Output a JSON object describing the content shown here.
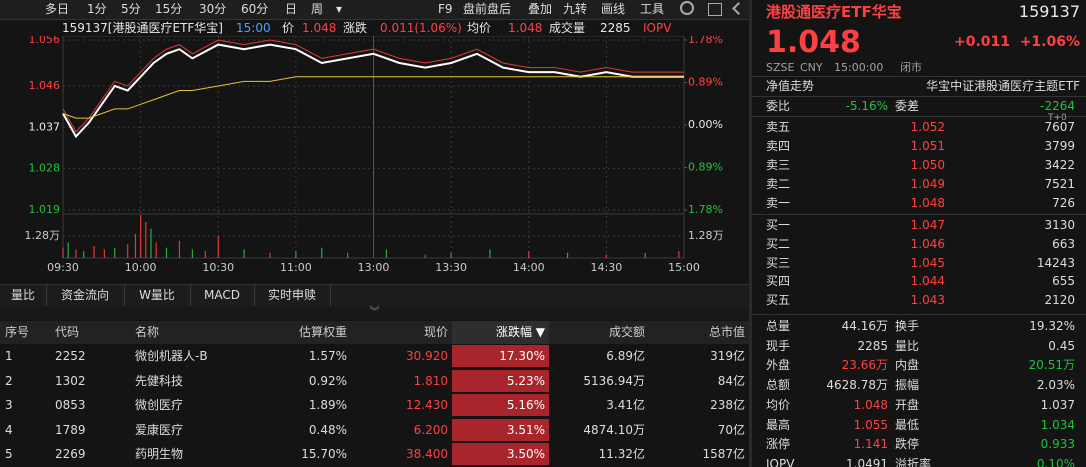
{
  "toolbar": {
    "left": [
      "多日",
      "1分",
      "5分",
      "15分",
      "30分",
      "60分",
      "日",
      "周",
      "▾"
    ],
    "right": [
      "F9",
      "盘前盘后",
      "叠加",
      "九转",
      "画线",
      "工具"
    ]
  },
  "chart_header": {
    "code_name": "159137[港股通医疗ETF华宝]",
    "time": "15:00",
    "price_label": "价",
    "price": "1.048",
    "change_label": "涨跌",
    "change": "0.011(1.06%)",
    "avg_label": "均价",
    "avg": "1.048",
    "volume_label": "成交量",
    "volume": "2285",
    "iopv_label": "IOPV"
  },
  "chart_data": [
    {
      "type": "line",
      "x": [
        0,
        5,
        10,
        15,
        20,
        25,
        30,
        35,
        40,
        45,
        50,
        60,
        70,
        80,
        90,
        100,
        110,
        120,
        130,
        140,
        150,
        160,
        170,
        180,
        190,
        200,
        210,
        220,
        230,
        240
      ],
      "series": [
        {
          "color": "#e03a3a",
          "values": [
            1.041,
            1.036,
            1.039,
            1.043,
            1.047,
            1.046,
            1.049,
            1.052,
            1.054,
            1.055,
            1.053,
            1.056,
            1.055,
            1.056,
            1.055,
            1.052,
            1.053,
            1.054,
            1.052,
            1.051,
            1.052,
            1.054,
            1.051,
            1.05,
            1.05,
            1.049,
            1.05,
            1.049,
            1.049,
            1.049
          ]
        },
        {
          "color": "#ffffff",
          "values": [
            1.04,
            1.035,
            1.038,
            1.042,
            1.046,
            1.045,
            1.048,
            1.051,
            1.053,
            1.054,
            1.052,
            1.055,
            1.054,
            1.055,
            1.054,
            1.051,
            1.052,
            1.053,
            1.051,
            1.05,
            1.051,
            1.053,
            1.05,
            1.049,
            1.049,
            1.048,
            1.049,
            1.048,
            1.048,
            1.048
          ]
        },
        {
          "color": "#e8c040",
          "values": [
            1.04,
            1.039,
            1.039,
            1.04,
            1.041,
            1.041,
            1.042,
            1.043,
            1.044,
            1.045,
            1.045,
            1.046,
            1.047,
            1.047,
            1.048,
            1.048,
            1.048,
            1.048,
            1.048,
            1.048,
            1.048,
            1.048,
            1.048,
            1.048,
            1.048,
            1.048,
            1.048,
            1.048,
            1.048,
            1.048
          ]
        }
      ],
      "xlim": [
        0,
        240
      ],
      "xticks": [
        {
          "value": 0,
          "label": "09:30"
        },
        {
          "value": 30,
          "label": "10:00"
        },
        {
          "value": 60,
          "label": "10:30"
        },
        {
          "value": 90,
          "label": "11:00"
        },
        {
          "value": 120,
          "label": "13:00"
        },
        {
          "value": 150,
          "label": "13:30"
        },
        {
          "value": 180,
          "label": "14:00"
        },
        {
          "value": 210,
          "label": "14:30"
        },
        {
          "value": 240,
          "label": "15:00"
        }
      ],
      "ylim": [
        1.019,
        1.056
      ],
      "yticks": [
        1.056,
        1.046,
        1.037,
        1.028,
        1.019
      ],
      "y2lim": [
        -1.78,
        1.78
      ],
      "y2ticks": [
        {
          "value": 1.78,
          "label": "1.78%"
        },
        {
          "value": 0.89,
          "label": "0.89%"
        },
        {
          "value": 0,
          "label": "0.00%"
        },
        {
          "value": -0.89,
          "label": "0.89%"
        },
        {
          "value": -1.78,
          "label": "1.78%"
        }
      ],
      "grid": true
    },
    {
      "type": "bar",
      "x": [
        0,
        2,
        5,
        8,
        12,
        16,
        20,
        25,
        28,
        30,
        32,
        34,
        36,
        40,
        45,
        50,
        55,
        60,
        70,
        80,
        90,
        100,
        110,
        125,
        140,
        150,
        165,
        180,
        195,
        210,
        225,
        238
      ],
      "values": [
        6000,
        9000,
        5000,
        4000,
        7000,
        5000,
        6000,
        8000,
        14000,
        25000,
        21000,
        17000,
        9000,
        6000,
        10000,
        5000,
        4000,
        13000,
        5000,
        3000,
        4000,
        6000,
        3000,
        5000,
        2000,
        3000,
        5000,
        4000,
        3000,
        2000,
        3000,
        4000
      ],
      "colors": [
        "#e03a3a",
        "#20b040",
        "#e03a3a",
        "#20b040",
        "#e03a3a",
        "#e03a3a",
        "#20b040",
        "#e03a3a",
        "#e03a3a",
        "#e03a3a",
        "#e03a3a",
        "#20b040",
        "#e03a3a",
        "#20b040",
        "#e03a3a",
        "#20b040",
        "#e03a3a",
        "#e03a3a",
        "#20b040",
        "#e03a3a",
        "#20b040",
        "#20b040",
        "#e03a3a",
        "#20b040",
        "#e03a3a",
        "#20b040",
        "#20b040",
        "#e03a3a",
        "#20b040",
        "#e03a3a",
        "#20b040",
        "#e03a3a"
      ],
      "xlim": [
        0,
        240
      ],
      "ylim": [
        0,
        25600
      ],
      "yticks": [
        {
          "value": 12800,
          "label": "1.28万"
        }
      ]
    }
  ],
  "tabs": [
    "量比",
    "资金流向",
    "W量比",
    "MACD",
    "实时申赎"
  ],
  "table": {
    "header": [
      "序号",
      "代码",
      "名称",
      "估算权重",
      "现价",
      "涨跌幅 ▼",
      "成交额",
      "总市值"
    ],
    "rows": [
      [
        "1",
        "2252",
        "微创机器人-B",
        "1.57%",
        "30.920",
        "17.30%",
        "6.89亿",
        "319亿"
      ],
      [
        "2",
        "1302",
        "先健科技",
        "0.92%",
        "1.810",
        "5.23%",
        "5136.94万",
        "84亿"
      ],
      [
        "3",
        "0853",
        "微创医疗",
        "1.89%",
        "12.430",
        "5.16%",
        "3.41亿",
        "238亿"
      ],
      [
        "4",
        "1789",
        "爱康医疗",
        "0.48%",
        "6.200",
        "3.51%",
        "4874.10万",
        "70亿"
      ],
      [
        "5",
        "2269",
        "药明生物",
        "15.70%",
        "38.400",
        "3.50%",
        "11.32亿",
        "1587亿"
      ]
    ]
  },
  "quote": {
    "name": "港股通医疗ETF华宝",
    "code": "159137",
    "price": "1.048",
    "change": "+0.011",
    "change_pct": "+1.06%",
    "exchange": "SZSE",
    "currency": "CNY",
    "time": "15:00:00",
    "status": "闭市",
    "nav_label": "净值走势",
    "index_name": "华宝中证港股通医疗主题ETF",
    "wb_label": "委比",
    "wb": "-5.16%",
    "wc_label": "委差",
    "wc": "-2264",
    "t0": "T+0"
  },
  "order_book": [
    {
      "label": "卖五",
      "price": "1.052",
      "volume": "7607"
    },
    {
      "label": "卖四",
      "price": "1.051",
      "volume": "3799"
    },
    {
      "label": "卖三",
      "price": "1.050",
      "volume": "3422"
    },
    {
      "label": "卖二",
      "price": "1.049",
      "volume": "7521"
    },
    {
      "label": "卖一",
      "price": "1.048",
      "volume": "726"
    },
    {
      "label": "买一",
      "price": "1.047",
      "volume": "3130"
    },
    {
      "label": "买二",
      "price": "1.046",
      "volume": "663"
    },
    {
      "label": "买三",
      "price": "1.045",
      "volume": "14243"
    },
    {
      "label": "买四",
      "price": "1.044",
      "volume": "655"
    },
    {
      "label": "买五",
      "price": "1.043",
      "volume": "2120"
    }
  ],
  "stats": [
    [
      {
        "label": "总量",
        "value": "44.16万"
      },
      {
        "label": "换手",
        "value": "19.32%"
      }
    ],
    [
      {
        "label": "现手",
        "value": "2285"
      },
      {
        "label": "量比",
        "value": "0.45"
      }
    ],
    [
      {
        "label": "外盘",
        "value": "23.66万",
        "color": "#ff4040"
      },
      {
        "label": "内盘",
        "value": "20.51万",
        "color": "#20c040"
      }
    ],
    [
      {
        "label": "总额",
        "value": "4628.78万"
      },
      {
        "label": "振幅",
        "value": "2.03%"
      }
    ],
    [
      {
        "label": "均价",
        "value": "1.048",
        "color": "#ff4040"
      },
      {
        "label": "开盘",
        "value": "1.037"
      }
    ],
    [
      {
        "label": "最高",
        "value": "1.055",
        "color": "#ff4040"
      },
      {
        "label": "最低",
        "value": "1.034",
        "color": "#20c040"
      }
    ],
    [
      {
        "label": "涨停",
        "value": "1.141",
        "color": "#ff4040"
      },
      {
        "label": "跌停",
        "value": "0.933",
        "color": "#20c040"
      }
    ],
    [
      {
        "label": "IOPV",
        "value": "1.0491"
      },
      {
        "label": "溢折率",
        "value": "0.10%",
        "color": "#20c040"
      }
    ]
  ]
}
